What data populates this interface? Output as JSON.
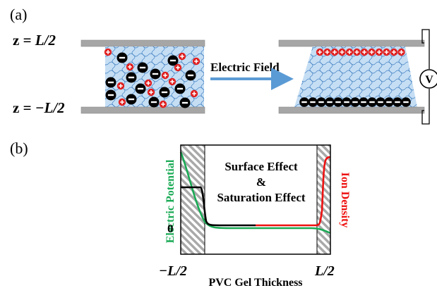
{
  "panel_a": {
    "label": "(a)",
    "z_top": "L/2",
    "z_bottom": "−L/2",
    "z_prefix": "z = ",
    "z_bottom_prefix": "z = ",
    "arrow_label": "Electric Field",
    "voltmeter_label": "V",
    "colors": {
      "plate": "#a6a6a6",
      "gel": "#bdd7ee",
      "gel_lines": "#2e75b6",
      "anion": "#000000",
      "cation": "#e02020",
      "arrow": "#5b9bd5"
    }
  },
  "panel_b": {
    "label": "(b)",
    "annotation_line1": "Surface Effect",
    "annotation_line2": "&",
    "annotation_line3": "Saturation Effect",
    "left_axis_label": "Electric Potential",
    "right_axis_label": "Ion Density",
    "zero_tick": "0",
    "x_min_label": "−L/2",
    "x_max_label": "L/2",
    "x_axis_label": "PVC Gel Thickness",
    "colors": {
      "potential": "#1aaa55",
      "ion_density_black": "#000000",
      "ion_density_red": "#ee1111",
      "hatch": "#999999"
    }
  }
}
